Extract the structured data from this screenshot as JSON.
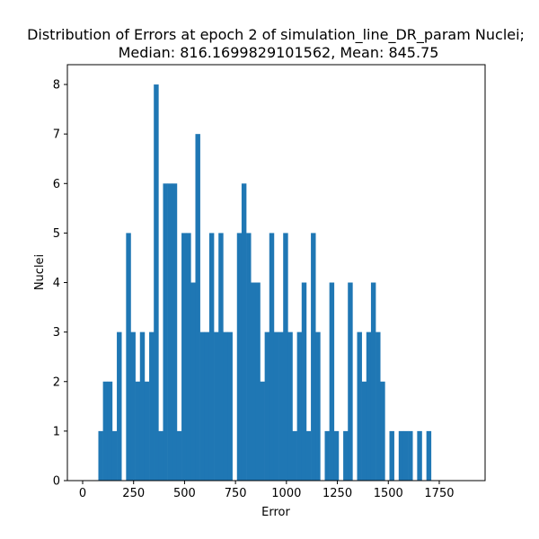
{
  "chart_data": {
    "type": "bar",
    "title_line1": "Distribution of Errors at epoch 2 of simulation_line_DR_param Nuclei;",
    "title_line2": "Median: 816.1699829101562, Mean: 845.75",
    "xlabel": "Error",
    "ylabel": "Nuclei",
    "xlim": [
      -75,
      1975
    ],
    "ylim": [
      0,
      8.4
    ],
    "xticks": [
      0,
      250,
      500,
      750,
      1000,
      1250,
      1500,
      1750
    ],
    "yticks": [
      0,
      1,
      2,
      3,
      4,
      5,
      6,
      7,
      8
    ],
    "bin_width": 22.675,
    "bin_start": 77,
    "counts": [
      1,
      2,
      2,
      1,
      3,
      0,
      5,
      3,
      2,
      3,
      2,
      3,
      8,
      1,
      6,
      6,
      6,
      1,
      5,
      5,
      4,
      7,
      3,
      3,
      5,
      3,
      5,
      3,
      3,
      0,
      5,
      6,
      5,
      4,
      4,
      2,
      3,
      5,
      3,
      3,
      5,
      3,
      1,
      3,
      4,
      1,
      5,
      3,
      0,
      1,
      4,
      1,
      0,
      1,
      4,
      0,
      3,
      2,
      3,
      4,
      3,
      2,
      0,
      1,
      0,
      1,
      1,
      1,
      0,
      1,
      0,
      1
    ],
    "bar_color": "#1f77b4",
    "grid": false,
    "legend": "none"
  }
}
